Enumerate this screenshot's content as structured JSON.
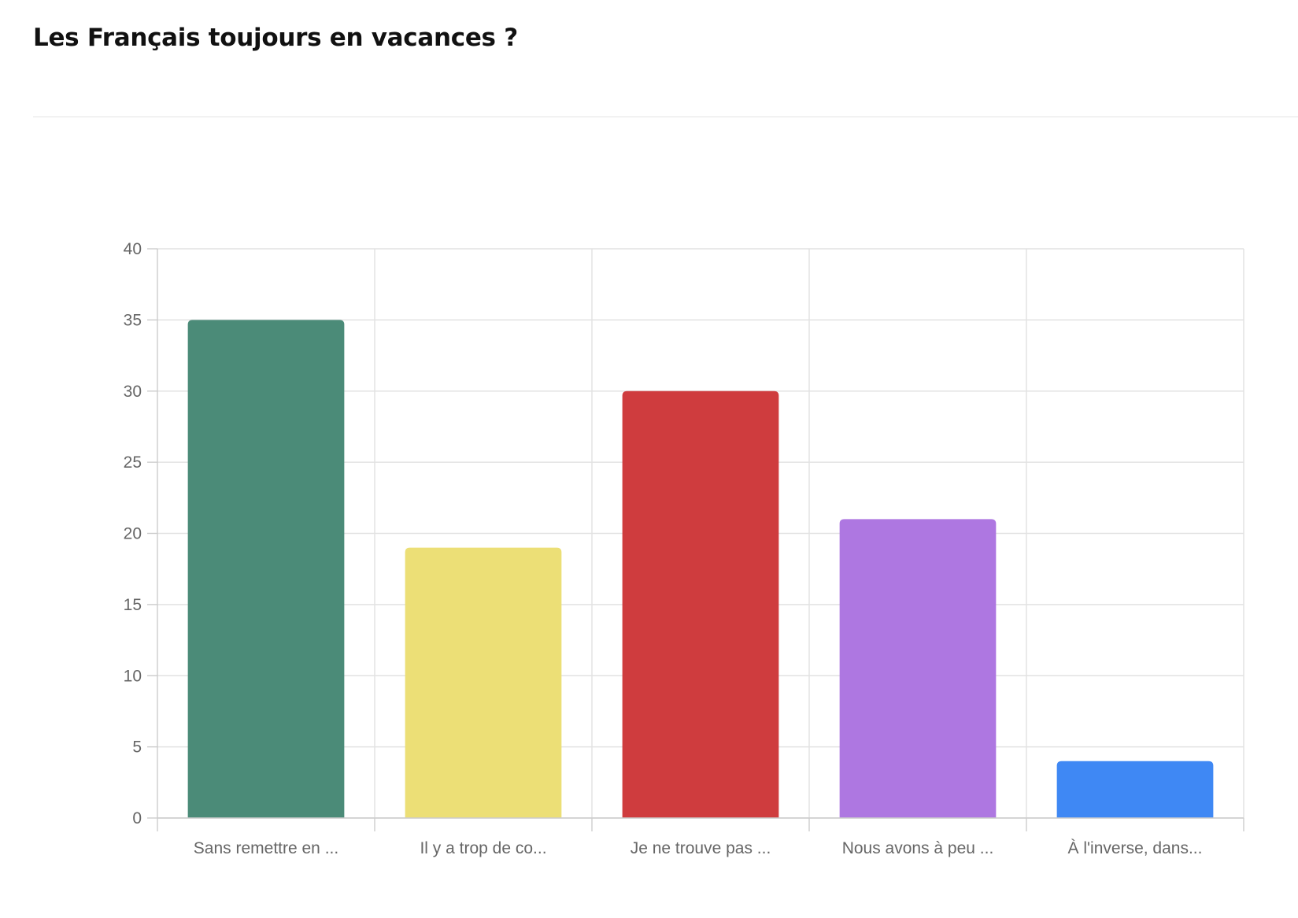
{
  "header": {
    "title": "Les Français toujours en vacances ?"
  },
  "chart_data": {
    "type": "bar",
    "title": "Les Français toujours en vacances ?",
    "xlabel": "",
    "ylabel": "",
    "categories": [
      "Sans remettre en ...",
      "Il y a trop de co...",
      "Je ne trouve pas ...",
      "Nous avons à peu ...",
      "À l'inverse, dans..."
    ],
    "values": [
      35,
      19,
      30,
      21,
      4
    ],
    "colors": [
      "#4b8b78",
      "#ecdf76",
      "#cf3c3e",
      "#ae77e1",
      "#3f88f4"
    ],
    "ylim": [
      0,
      40
    ],
    "yticks": [
      0,
      5,
      10,
      15,
      20,
      25,
      30,
      35,
      40
    ],
    "grid": true,
    "legend": "none",
    "gridColor": "#e2e2e2",
    "axisColor": "#cccccc"
  }
}
